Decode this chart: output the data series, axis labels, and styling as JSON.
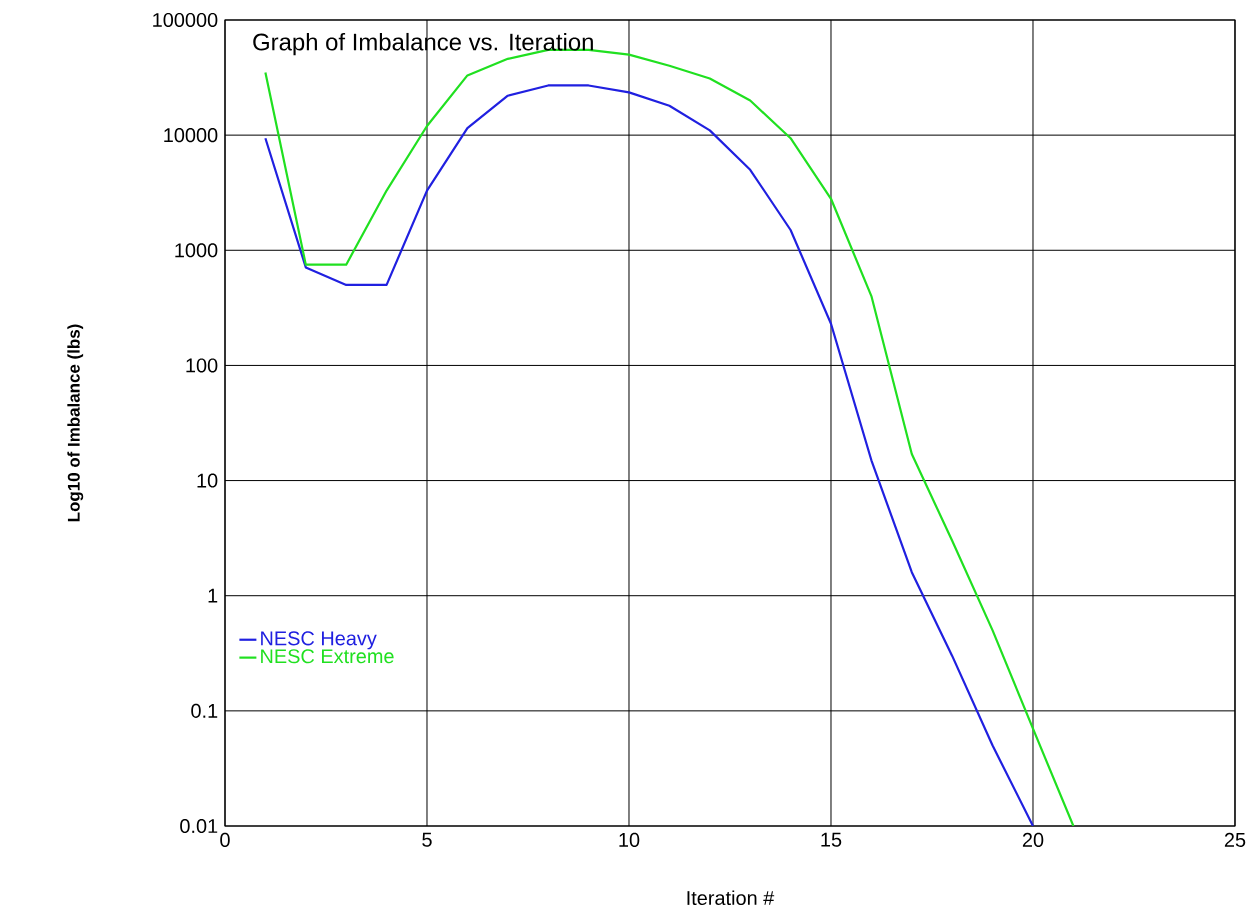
{
  "chart_data": {
    "type": "line",
    "title": "Graph of Imbalance vs. Iteration",
    "xlabel": "Iteration #",
    "ylabel": "Log10 of Imbalance (lbs)",
    "x": [
      1,
      2,
      3,
      4,
      5,
      6,
      7,
      8,
      9,
      10,
      11,
      12,
      13,
      14,
      15,
      16,
      17,
      18,
      19,
      20,
      21
    ],
    "series": [
      {
        "name": "NESC Heavy",
        "color": "#2020e0",
        "values": [
          9400,
          710,
          500,
          500,
          3300,
          11500,
          22000,
          27000,
          27000,
          23500,
          18000,
          11000,
          5000,
          1500,
          230,
          15,
          1.6,
          0.3,
          0.05,
          0.01,
          null
        ]
      },
      {
        "name": "NESC Extreme",
        "color": "#20e020",
        "values": [
          35000,
          750,
          750,
          3300,
          12000,
          33000,
          46000,
          55000,
          55000,
          50000,
          40000,
          31000,
          20000,
          9400,
          2800,
          400,
          17,
          3,
          0.5,
          0.07,
          0.01
        ]
      }
    ],
    "log": "y",
    "xlim": [
      0,
      25
    ],
    "ylim": [
      0.01,
      100000
    ],
    "xticks": [
      0,
      5,
      10,
      15,
      20,
      25
    ],
    "yticks": [
      0.01,
      0.1,
      1,
      10,
      100,
      1000,
      10000,
      100000
    ],
    "grid": true,
    "legend": "left",
    "marker": "none",
    "line_style": "solid"
  }
}
